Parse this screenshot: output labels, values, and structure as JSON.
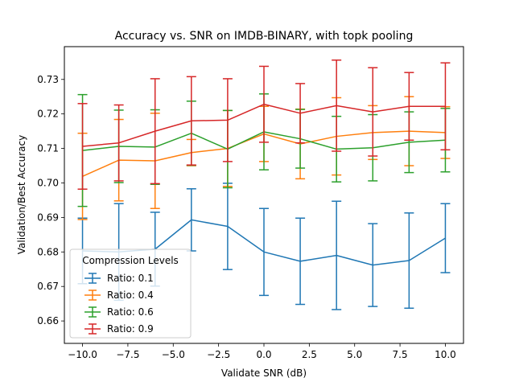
{
  "chart_data": {
    "type": "line",
    "title": "Accuracy vs. SNR on IMDB-BINARY, with topk pooling",
    "xlabel": "Validate SNR (dB)",
    "ylabel": "Validation/Best Accuracy",
    "xlim": [
      -11,
      11
    ],
    "ylim": [
      0.6535,
      0.7395
    ],
    "xticks": [
      -10,
      -7.5,
      -5,
      -2.5,
      0,
      2.5,
      5,
      7.5,
      10
    ],
    "xtick_labels": [
      "−10.0",
      "−7.5",
      "−5.0",
      "−2.5",
      "0.0",
      "2.5",
      "5.0",
      "7.5",
      "10.0"
    ],
    "yticks": [
      0.66,
      0.67,
      0.68,
      0.69,
      0.7,
      0.71,
      0.72,
      0.73
    ],
    "ytick_labels": [
      "0.66",
      "0.67",
      "0.68",
      "0.69",
      "0.70",
      "0.71",
      "0.72",
      "0.73"
    ],
    "grid": false,
    "legend": {
      "title": "Compression Levels",
      "position": "lower-left"
    },
    "x": [
      -10,
      -8,
      -6,
      -4,
      -2,
      0,
      2,
      4,
      6,
      8,
      10
    ],
    "series": [
      {
        "name": "Ratio: 0.1",
        "color": "#1f77b4",
        "values": [
          0.6803,
          0.68,
          0.6808,
          0.6893,
          0.6874,
          0.68,
          0.6773,
          0.679,
          0.6762,
          0.6775,
          0.684
        ],
        "errors": [
          0.0095,
          0.014,
          0.0107,
          0.009,
          0.0125,
          0.0126,
          0.0125,
          0.0157,
          0.012,
          0.0138,
          0.01
        ]
      },
      {
        "name": "Ratio: 0.4",
        "color": "#ff7f0e",
        "values": [
          0.7019,
          0.7066,
          0.7064,
          0.7088,
          0.71,
          0.7142,
          0.7113,
          0.7135,
          0.7146,
          0.715,
          0.7146
        ],
        "errors": [
          0.0125,
          0.0118,
          0.0138,
          0.0038,
          0.011,
          0.008,
          0.0101,
          0.0112,
          0.0078,
          0.01,
          0.0075
        ]
      },
      {
        "name": "Ratio: 0.6",
        "color": "#2ca02c",
        "values": [
          0.7094,
          0.7106,
          0.7104,
          0.7144,
          0.7098,
          0.7148,
          0.7128,
          0.7098,
          0.7102,
          0.7118,
          0.7124
        ],
        "errors": [
          0.0162,
          0.0105,
          0.0108,
          0.0093,
          0.0112,
          0.011,
          0.0085,
          0.0095,
          0.0096,
          0.0088,
          0.0092
        ]
      },
      {
        "name": "Ratio: 0.9",
        "color": "#d62728",
        "values": [
          0.7106,
          0.7116,
          0.715,
          0.718,
          0.7182,
          0.7228,
          0.7202,
          0.7224,
          0.7206,
          0.7222,
          0.7222
        ],
        "errors": [
          0.0124,
          0.011,
          0.0152,
          0.0128,
          0.012,
          0.011,
          0.0086,
          0.0132,
          0.0128,
          0.0098,
          0.0126
        ]
      }
    ]
  }
}
